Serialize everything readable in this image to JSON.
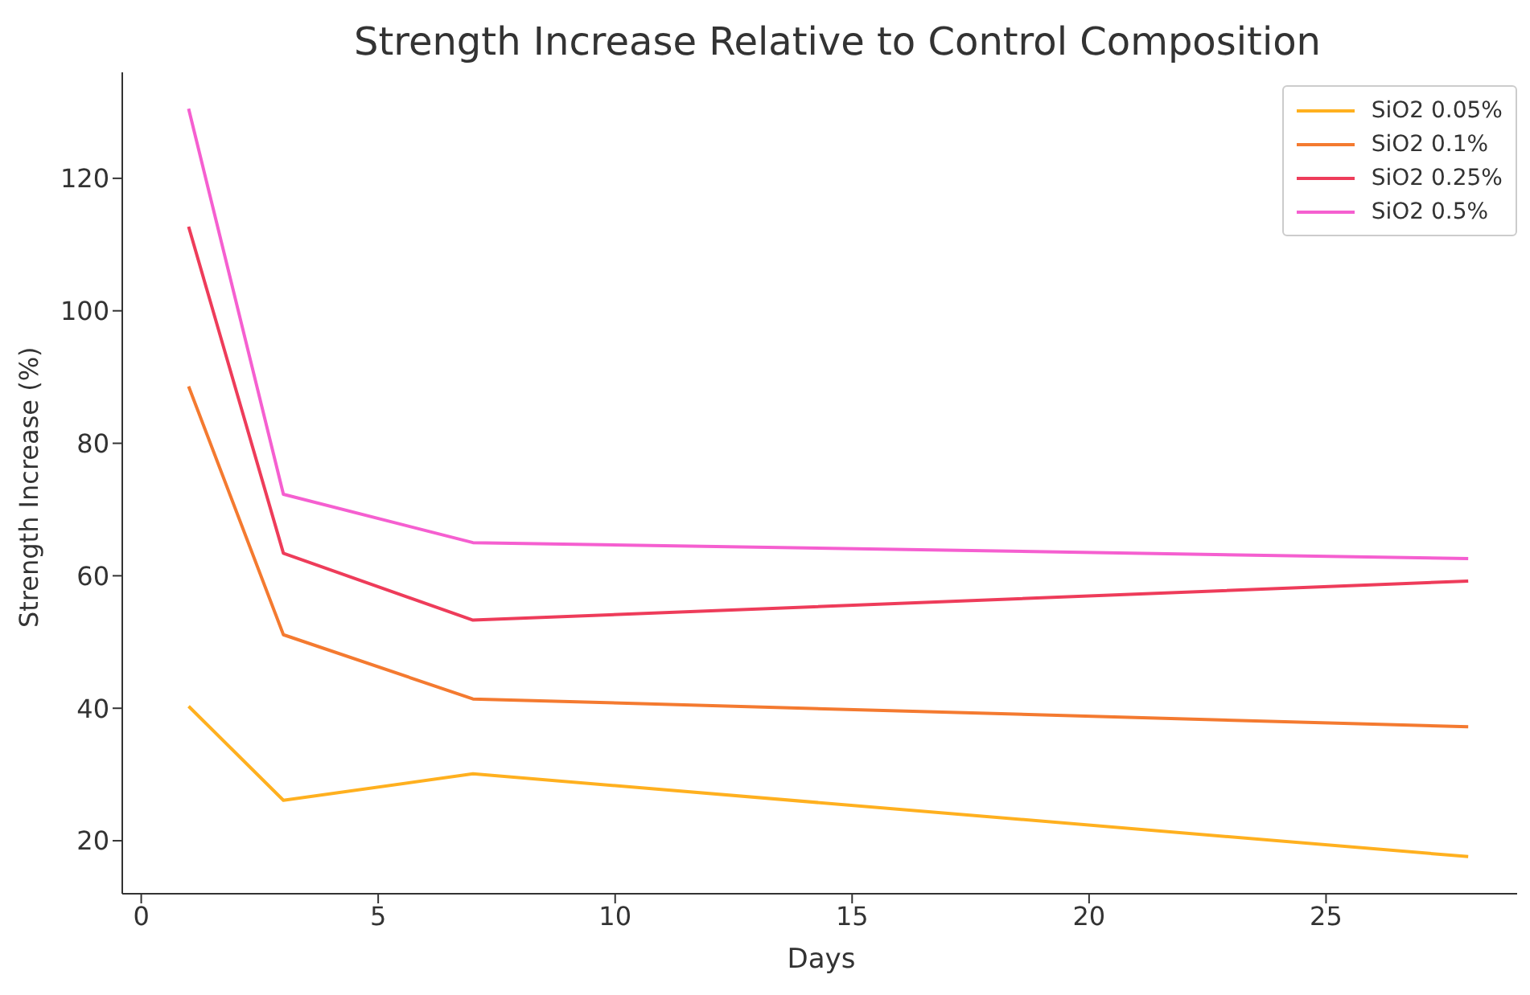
{
  "chart_data": {
    "type": "line",
    "title": "Strength Increase Relative to Control Composition",
    "xlabel": "Days",
    "ylabel": "Strength Increase (%)",
    "x": [
      1,
      3,
      7,
      28
    ],
    "series": [
      {
        "name": "SiO2 0.05%",
        "color": "#ffb01f",
        "values": [
          40.3,
          26.1,
          30.1,
          17.6
        ]
      },
      {
        "name": "SiO2 0.1%",
        "color": "#f47a30",
        "values": [
          88.6,
          51.1,
          41.4,
          37.2
        ]
      },
      {
        "name": "SiO2 0.25%",
        "color": "#ee3c5a",
        "values": [
          112.7,
          63.4,
          53.3,
          59.2
        ]
      },
      {
        "name": "SiO2 0.5%",
        "color": "#f55fd0",
        "values": [
          130.5,
          72.3,
          65.0,
          62.6
        ]
      }
    ],
    "xlim": [
      -0.4,
      29.1
    ],
    "xticks": [
      0,
      5,
      10,
      15,
      20,
      25
    ],
    "ylim": [
      12,
      136
    ],
    "yticks": [
      20,
      40,
      60,
      80,
      100,
      120
    ],
    "grid": false,
    "legend": "top right",
    "marker": "none",
    "line_style": "solid"
  }
}
